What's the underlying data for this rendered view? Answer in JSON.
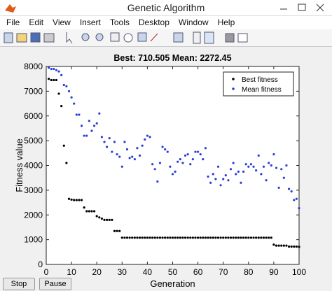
{
  "window": {
    "title": "Genetic Algorithm",
    "menu": [
      "File",
      "Edit",
      "View",
      "Insert",
      "Tools",
      "Desktop",
      "Window",
      "Help"
    ]
  },
  "buttons": [
    "Stop",
    "Pause"
  ],
  "chart_data": {
    "type": "scatter",
    "title": "Best: 710.505 Mean: 2272.45",
    "xlabel": "Generation",
    "ylabel": "Fitness value",
    "xlim": [
      0,
      100
    ],
    "ylim": [
      0,
      8000
    ],
    "xticks": [
      0,
      10,
      20,
      30,
      40,
      50,
      60,
      70,
      80,
      90,
      100
    ],
    "yticks": [
      0,
      1000,
      2000,
      3000,
      4000,
      5000,
      6000,
      7000,
      8000
    ],
    "legend": "northeast",
    "x": [
      1,
      2,
      3,
      4,
      5,
      6,
      7,
      8,
      9,
      10,
      11,
      12,
      13,
      14,
      15,
      16,
      17,
      18,
      19,
      20,
      21,
      22,
      23,
      24,
      25,
      26,
      27,
      28,
      29,
      30,
      31,
      32,
      33,
      34,
      35,
      36,
      37,
      38,
      39,
      40,
      41,
      42,
      43,
      44,
      45,
      46,
      47,
      48,
      49,
      50,
      51,
      52,
      53,
      54,
      55,
      56,
      57,
      58,
      59,
      60,
      61,
      62,
      63,
      64,
      65,
      66,
      67,
      68,
      69,
      70,
      71,
      72,
      73,
      74,
      75,
      76,
      77,
      78,
      79,
      80,
      81,
      82,
      83,
      84,
      85,
      86,
      87,
      88,
      89,
      90,
      91,
      92,
      93,
      94,
      95,
      96,
      97,
      98,
      99,
      100
    ],
    "series": [
      {
        "name": "Best fitness",
        "color": "#000000",
        "values": [
          7500,
          7450,
          7450,
          7450,
          6900,
          6400,
          4800,
          4100,
          2650,
          2620,
          2600,
          2600,
          2600,
          2600,
          2300,
          2150,
          2150,
          2150,
          2150,
          1950,
          1900,
          1850,
          1800,
          1800,
          1800,
          1800,
          1350,
          1350,
          1350,
          1080,
          1080,
          1080,
          1080,
          1080,
          1080,
          1080,
          1080,
          1080,
          1080,
          1080,
          1080,
          1080,
          1080,
          1080,
          1080,
          1080,
          1080,
          1080,
          1080,
          1080,
          1080,
          1080,
          1080,
          1080,
          1080,
          1080,
          1080,
          1080,
          1080,
          1080,
          1080,
          1080,
          1080,
          1080,
          1080,
          1080,
          1080,
          1080,
          1080,
          1080,
          1080,
          1080,
          1080,
          1080,
          1080,
          1080,
          1080,
          1080,
          1080,
          1080,
          1080,
          1080,
          1080,
          1080,
          1080,
          1080,
          1080,
          1080,
          1080,
          800,
          760,
          760,
          760,
          760,
          760,
          720,
          720,
          720,
          720,
          710.505
        ]
      },
      {
        "name": "Mean fitness",
        "color": "#2a3fd6",
        "values": [
          7950,
          7900,
          7900,
          7850,
          7800,
          7650,
          7250,
          7200,
          7000,
          6750,
          6500,
          6050,
          6050,
          5600,
          5200,
          5200,
          5800,
          5400,
          5600,
          5700,
          6100,
          5150,
          4950,
          4750,
          5100,
          4550,
          4950,
          4450,
          4350,
          3950,
          4950,
          4650,
          4300,
          4350,
          4250,
          4700,
          4400,
          4800,
          5050,
          5200,
          5150,
          4050,
          3850,
          3350,
          4100,
          4750,
          4650,
          4550,
          3950,
          3650,
          3750,
          4150,
          4250,
          4100,
          4400,
          4450,
          4050,
          4250,
          4550,
          4550,
          4450,
          4250,
          4700,
          3550,
          3300,
          3650,
          3450,
          3950,
          3200,
          3450,
          3600,
          3400,
          3850,
          4100,
          3650,
          3750,
          3300,
          3750,
          4050,
          3950,
          4050,
          3950,
          3800,
          4400,
          3650,
          3950,
          3400,
          4100,
          4000,
          4450,
          3900,
          3100,
          3850,
          3500,
          4000,
          3050,
          2950,
          2600,
          2650,
          2272.45
        ]
      }
    ]
  }
}
